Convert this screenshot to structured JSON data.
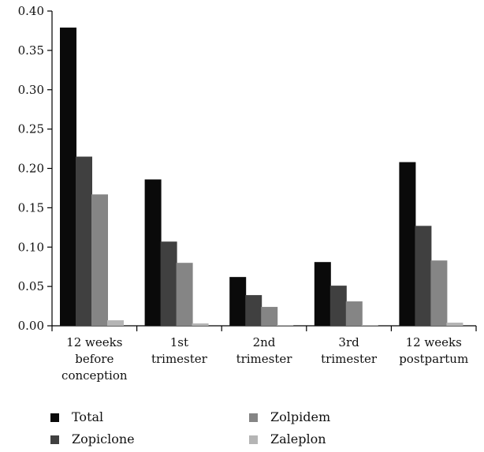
{
  "chart_data": {
    "type": "bar",
    "categories": [
      [
        "12 weeks",
        "before",
        "conception"
      ],
      [
        "1st",
        "trimester"
      ],
      [
        "2nd",
        "trimester"
      ],
      [
        "3rd",
        "trimester"
      ],
      [
        "12 weeks",
        "postpartum"
      ]
    ],
    "series": [
      {
        "name": "Total",
        "color": "#0a0a0a",
        "values": [
          0.379,
          0.186,
          0.062,
          0.081,
          0.208
        ]
      },
      {
        "name": "Zopiclone",
        "color": "#404040",
        "values": [
          0.215,
          0.107,
          0.039,
          0.051,
          0.127
        ]
      },
      {
        "name": "Zolpidem",
        "color": "#858585",
        "values": [
          0.167,
          0.08,
          0.024,
          0.031,
          0.083
        ]
      },
      {
        "name": "Zaleplon",
        "color": "#b5b5b5",
        "values": [
          0.007,
          0.003,
          0.001,
          0.001,
          0.004
        ]
      }
    ],
    "yticks": [
      "0.00",
      "0.05",
      "0.10",
      "0.15",
      "0.20",
      "0.25",
      "0.30",
      "0.35",
      "0.40"
    ],
    "ylim": [
      0,
      0.4
    ],
    "title": "",
    "xlabel": "",
    "ylabel": "",
    "grid": false,
    "legend_position": "bottom"
  }
}
